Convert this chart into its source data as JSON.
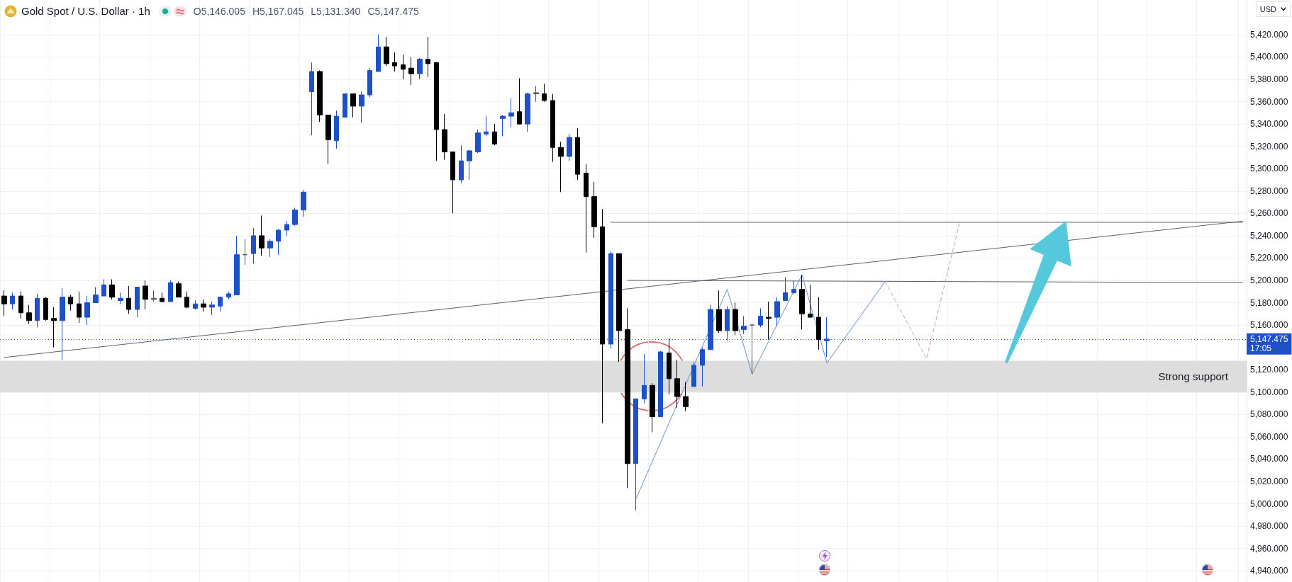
{
  "chart_data": {
    "type": "candlestick",
    "title": "Gold Spot / U.S. Dollar · 1h",
    "ylabel": "USD",
    "annotations": [
      "O5,146.005",
      "H5,167.045",
      "L5,131.340",
      "C5,147.475"
    ],
    "categories": [
      null,
      null,
      null,
      null,
      null,
      null,
      null,
      null,
      null,
      null,
      null,
      null,
      null,
      null,
      null,
      null,
      null,
      null,
      null,
      null,
      null,
      null,
      null,
      null,
      null,
      null,
      null,
      null,
      null,
      null,
      null,
      null,
      null,
      null,
      null,
      null,
      null,
      null,
      null,
      null,
      null,
      null,
      null,
      null,
      null,
      null,
      null,
      null,
      null,
      null,
      null,
      null,
      null,
      null,
      null,
      null,
      null,
      null,
      null,
      null,
      null,
      null,
      null,
      null,
      null,
      null,
      null,
      null,
      null,
      null,
      null,
      null,
      null,
      null,
      null,
      null,
      null,
      null,
      null,
      null,
      null,
      null,
      null,
      null,
      null,
      null,
      null,
      null,
      null,
      null,
      null,
      null,
      null,
      null,
      null,
      null,
      null,
      null,
      null,
      null,
      null,
      null,
      null,
      null,
      null,
      null,
      null,
      null,
      null,
      null,
      null,
      null,
      null,
      null,
      null,
      null,
      null,
      null,
      null,
      null,
      null,
      null,
      null,
      null,
      null,
      null,
      null,
      null,
      null,
      null,
      null,
      null,
      null,
      null,
      null,
      null,
      null,
      null,
      null,
      null,
      null,
      null,
      null,
      null,
      null,
      null,
      null,
      null,
      null,
      null
    ],
    "ohlc": [
      [
        5186,
        5191,
        5168,
        5179
      ],
      [
        5179,
        5189,
        5174,
        5186
      ],
      [
        5186,
        5190,
        5166,
        5171
      ],
      [
        5171,
        5178,
        5161,
        5164
      ],
      [
        5164,
        5188,
        5158,
        5184
      ],
      [
        5184,
        5185,
        5164,
        5165
      ],
      [
        5166,
        5176,
        5140,
        5164
      ],
      [
        5164,
        5193,
        5129,
        5185
      ],
      [
        5185,
        5187,
        5173,
        5179
      ],
      [
        5179,
        5190,
        5162,
        5167
      ],
      [
        5167,
        5186,
        5160,
        5180
      ],
      [
        5180,
        5194,
        5180,
        5187
      ],
      [
        5186,
        5201,
        5186,
        5196
      ],
      [
        5196,
        5201,
        5183,
        5185
      ],
      [
        5182,
        5189,
        5179,
        5184
      ],
      [
        5184,
        5195,
        5170,
        5174
      ],
      [
        5174,
        5194,
        5167,
        5194
      ],
      [
        5195,
        5200,
        5174,
        5183
      ],
      [
        5184,
        5191,
        5181,
        5183
      ],
      [
        5184,
        5189,
        5181,
        5181
      ],
      [
        5181,
        5200,
        5181,
        5198
      ],
      [
        5197,
        5199,
        5185,
        5185
      ],
      [
        5185,
        5190,
        5175,
        5176
      ],
      [
        5175,
        5182,
        5174,
        5179
      ],
      [
        5179,
        5183,
        5172,
        5176
      ],
      [
        5176,
        5181,
        5169,
        5178
      ],
      [
        5177,
        5185,
        5172,
        5185
      ],
      [
        5185,
        5190,
        5183,
        5188
      ],
      [
        5187,
        5240,
        5187,
        5223
      ],
      [
        5223,
        5237,
        5214,
        5223
      ],
      [
        5224,
        5247,
        5215,
        5240
      ],
      [
        5240,
        5258,
        5222,
        5229
      ],
      [
        5229,
        5237,
        5221,
        5235
      ],
      [
        5235,
        5246,
        5223,
        5245
      ],
      [
        5245,
        5253,
        5240,
        5250
      ],
      [
        5250,
        5265,
        5249,
        5263
      ],
      [
        5263,
        5281,
        5257,
        5279
      ],
      [
        5369,
        5395,
        5330,
        5387
      ],
      [
        5387,
        5388,
        5342,
        5348
      ],
      [
        5348,
        5348,
        5304,
        5326
      ],
      [
        5325,
        5352,
        5318,
        5347
      ],
      [
        5346,
        5367,
        5346,
        5367
      ],
      [
        5367,
        5367,
        5346,
        5356
      ],
      [
        5356,
        5369,
        5341,
        5366
      ],
      [
        5366,
        5390,
        5364,
        5388
      ],
      [
        5387,
        5420,
        5387,
        5409
      ],
      [
        5409,
        5418,
        5392,
        5394
      ],
      [
        5395,
        5404,
        5387,
        5392
      ],
      [
        5393,
        5402,
        5380,
        5389
      ],
      [
        5390,
        5400,
        5375,
        5385
      ],
      [
        5385,
        5399,
        5380,
        5398
      ],
      [
        5398,
        5418,
        5382,
        5394
      ],
      [
        5395,
        5395,
        5307,
        5335
      ],
      [
        5335,
        5349,
        5308,
        5315
      ],
      [
        5315,
        5315,
        5260,
        5290
      ],
      [
        5290,
        5321,
        5287,
        5307
      ],
      [
        5307,
        5317,
        5290,
        5316
      ],
      [
        5315,
        5335,
        5314,
        5332
      ],
      [
        5331,
        5347,
        5329,
        5333
      ],
      [
        5333,
        5340,
        5321,
        5322
      ],
      [
        5345,
        5348,
        5329,
        5347
      ],
      [
        5347,
        5363,
        5337,
        5350
      ],
      [
        5351,
        5381,
        5340,
        5340
      ],
      [
        5340,
        5368,
        5333,
        5367
      ],
      [
        5368,
        5374,
        5360,
        5367
      ],
      [
        5367,
        5376,
        5360,
        5361
      ],
      [
        5361,
        5367,
        5306,
        5319
      ],
      [
        5319,
        5324,
        5279,
        5311
      ],
      [
        5311,
        5331,
        5307,
        5328
      ],
      [
        5328,
        5336,
        5290,
        5295
      ],
      [
        5296,
        5304,
        5225,
        5275
      ],
      [
        5275,
        5288,
        5238,
        5248
      ],
      [
        5248,
        5264,
        5072,
        5143
      ],
      [
        5143,
        5226,
        5139,
        5224
      ],
      [
        5224,
        5224,
        5127,
        5155
      ],
      [
        5156,
        5175,
        5014,
        5036
      ],
      [
        5036,
        5094,
        4994,
        5094
      ],
      [
        5094,
        5134,
        5090,
        5106
      ],
      [
        5106,
        5108,
        5064,
        5078
      ],
      [
        5078,
        5137,
        5078,
        5136
      ],
      [
        5135,
        5148,
        5098,
        5112
      ],
      [
        5112,
        5129,
        5086,
        5096
      ],
      [
        5096,
        5109,
        5083,
        5087
      ],
      [
        5105,
        5127,
        5105,
        5124
      ],
      [
        5124,
        5140,
        5105,
        5138
      ],
      [
        5138,
        5178,
        5138,
        5174
      ],
      [
        5174,
        5191,
        5153,
        5155
      ],
      [
        5155,
        5177,
        5146,
        5174
      ],
      [
        5174,
        5180,
        5151,
        5155
      ],
      [
        5156,
        5168,
        5152,
        5159
      ],
      [
        5160,
        5161,
        5116,
        5160
      ],
      [
        5160,
        5175,
        5158,
        5168
      ],
      [
        5167,
        5181,
        5147,
        5166
      ],
      [
        5167,
        5185,
        5159,
        5181
      ],
      [
        5182,
        5203,
        5182,
        5189
      ],
      [
        5189,
        5200,
        5188,
        5192
      ],
      [
        5192,
        5205,
        5156,
        5170
      ],
      [
        5170,
        5196,
        5167,
        5167
      ],
      [
        5167,
        5185,
        5138,
        5147
      ],
      [
        5146.005,
        5167.045,
        5131.34,
        5147.475
      ],
      null,
      null,
      null,
      null,
      null,
      null,
      null,
      null,
      null,
      null,
      null,
      null,
      null,
      null,
      null,
      null,
      null,
      null,
      null,
      null,
      null,
      null,
      null,
      null,
      null,
      null,
      null,
      null,
      null,
      null,
      null,
      null,
      null,
      null,
      null,
      null,
      null,
      null,
      null,
      null,
      null,
      null,
      null,
      null,
      null,
      null,
      null,
      null,
      null,
      null
    ],
    "colors": [
      "#000000",
      "#1e50c8",
      "#000000",
      "#000000",
      "#1e50c8",
      "#000000",
      "#000000",
      "#1e50c8",
      "#000000",
      "#000000",
      "#1e50c8",
      "#1e50c8",
      "#1e50c8",
      "#000000",
      "#1e50c8",
      "#000000",
      "#1e50c8",
      "#000000",
      "#555555",
      "#000000",
      "#1e50c8",
      "#000000",
      "#000000",
      "#1e50c8",
      "#000000",
      "#1e50c8",
      "#1e50c8",
      "#1e50c8",
      "#1e50c8",
      "#555555",
      "#1e50c8",
      "#000000",
      "#1e50c8",
      "#1e50c8",
      "#1e50c8",
      "#1e50c8",
      "#1e50c8",
      "#1e50c8",
      "#000000",
      "#000000",
      "#1e50c8",
      "#1e50c8",
      "#000000",
      "#1e50c8",
      "#1e50c8",
      "#1e50c8",
      "#000000",
      "#000000",
      "#000000",
      "#000000",
      "#1e50c8",
      "#000000",
      "#000000",
      "#000000",
      "#000000",
      "#1e50c8",
      "#1e50c8",
      "#1e50c8",
      "#1e50c8",
      "#000000",
      "#1e50c8",
      "#1e50c8",
      "#000000",
      "#1e50c8",
      "#555555",
      "#000000",
      "#000000",
      "#000000",
      "#1e50c8",
      "#000000",
      "#000000",
      "#000000",
      "#000000",
      "#1e50c8",
      "#000000",
      "#000000",
      "#1e50c8",
      "#1e50c8",
      "#000000",
      "#1e50c8",
      "#000000",
      "#000000",
      "#000000",
      "#1e50c8",
      "#1e50c8",
      "#1e50c8",
      "#000000",
      "#1e50c8",
      "#000000",
      "#1e50c8",
      "#555555",
      "#1e50c8",
      "#000000",
      "#1e50c8",
      "#1e50c8",
      "#1e50c8",
      "#000000",
      "#000000",
      "#000000",
      "#1e50c8",
      null,
      null,
      null,
      null,
      null,
      null,
      null,
      null,
      null,
      null,
      null,
      null,
      null,
      null,
      null,
      null,
      null,
      null,
      null,
      null,
      null,
      null,
      null,
      null,
      null,
      null,
      null,
      null,
      null,
      null,
      null,
      null,
      null,
      null,
      null,
      null,
      null,
      null,
      null,
      null,
      null,
      null,
      null,
      null,
      null,
      null,
      null,
      null,
      null,
      null
    ],
    "series": [
      {
        "type": "line",
        "color": "#5d606b",
        "values": [
          5131,
          null,
          null,
          null,
          null,
          null,
          null,
          null,
          null,
          null,
          null,
          null,
          null,
          null,
          null,
          null,
          null,
          null,
          null,
          null,
          null,
          null,
          null,
          null,
          null,
          null,
          null,
          null,
          null,
          null,
          null,
          null,
          null,
          null,
          null,
          null,
          null,
          null,
          null,
          null,
          null,
          null,
          null,
          null,
          null,
          null,
          null,
          null,
          null,
          null,
          null,
          null,
          null,
          null,
          null,
          null,
          null,
          null,
          null,
          null,
          null,
          null,
          null,
          null,
          null,
          null,
          null,
          null,
          null,
          null,
          null,
          null,
          null,
          null,
          null,
          null,
          null,
          null,
          null,
          null,
          null,
          null,
          null,
          null,
          null,
          null,
          null,
          null,
          null,
          null,
          null,
          null,
          null,
          null,
          null,
          null,
          null,
          null,
          null,
          null,
          null,
          null,
          null,
          null,
          null,
          null,
          null,
          null,
          null,
          null,
          null,
          null,
          null,
          null,
          null,
          null,
          null,
          null,
          null,
          null,
          null,
          null,
          null,
          null,
          null,
          null,
          null,
          null,
          null,
          null,
          null,
          null,
          null,
          null,
          null,
          null,
          null,
          null,
          null,
          null,
          null,
          null,
          null,
          null,
          null,
          null,
          null,
          null,
          null,
          5253
        ]
      },
      {
        "type": "line",
        "color": "#5d606b",
        "values": [
          null,
          null,
          null,
          null,
          null,
          null,
          null,
          null,
          null,
          null,
          null,
          null,
          null,
          null,
          null,
          null,
          null,
          null,
          null,
          null,
          null,
          null,
          null,
          null,
          null,
          null,
          null,
          null,
          null,
          null,
          null,
          null,
          null,
          null,
          null,
          null,
          null,
          null,
          null,
          null,
          null,
          null,
          null,
          null,
          null,
          null,
          null,
          null,
          null,
          null,
          null,
          null,
          null,
          null,
          null,
          null,
          null,
          null,
          null,
          null,
          null,
          null,
          null,
          null,
          null,
          null,
          null,
          null,
          null,
          null,
          null,
          null,
          null,
          5252,
          null,
          null,
          null,
          null,
          null,
          null,
          null,
          null,
          null,
          null,
          null,
          null,
          null,
          null,
          null,
          null,
          null,
          null,
          null,
          null,
          null,
          null,
          null,
          null,
          null,
          null,
          null,
          null,
          null,
          null,
          null,
          null,
          null,
          null,
          null,
          null,
          null,
          null,
          null,
          null,
          null,
          null,
          null,
          null,
          null,
          null,
          null,
          null,
          null,
          null,
          null,
          null,
          null,
          null,
          null,
          null,
          null,
          null,
          null,
          null,
          null,
          null,
          null,
          null,
          null,
          null,
          null,
          null,
          null,
          null,
          null,
          null,
          null,
          null,
          null,
          5252
        ]
      },
      {
        "type": "line",
        "color": "#5d606b",
        "values": [
          null,
          null,
          null,
          null,
          null,
          null,
          null,
          null,
          null,
          null,
          null,
          null,
          null,
          null,
          null,
          null,
          null,
          null,
          null,
          null,
          null,
          null,
          null,
          null,
          null,
          null,
          null,
          null,
          null,
          null,
          null,
          null,
          null,
          null,
          null,
          null,
          null,
          null,
          null,
          null,
          null,
          null,
          null,
          null,
          null,
          null,
          null,
          null,
          null,
          null,
          null,
          null,
          null,
          null,
          null,
          null,
          null,
          null,
          null,
          null,
          null,
          null,
          null,
          null,
          null,
          null,
          null,
          null,
          null,
          null,
          null,
          null,
          null,
          null,
          null,
          5200,
          null,
          null,
          null,
          null,
          null,
          null,
          null,
          null,
          null,
          null,
          null,
          null,
          null,
          null,
          null,
          null,
          null,
          null,
          null,
          null,
          null,
          null,
          null,
          null,
          null,
          null,
          null,
          null,
          null,
          null,
          null,
          null,
          null,
          null,
          null,
          null,
          null,
          null,
          null,
          null,
          null,
          null,
          null,
          null,
          null,
          null,
          null,
          null,
          null,
          null,
          null,
          null,
          null,
          null,
          null,
          null,
          null,
          null,
          null,
          null,
          null,
          null,
          null,
          null,
          null,
          null,
          null,
          null,
          null,
          null,
          null,
          null,
          null,
          5198
        ]
      },
      {
        "type": "line",
        "color": "#6b8fcc",
        "values": [
          null,
          null,
          null,
          null,
          null,
          null,
          null,
          null,
          null,
          null,
          null,
          null,
          null,
          null,
          null,
          null,
          null,
          null,
          null,
          null,
          null,
          null,
          null,
          null,
          null,
          null,
          null,
          null,
          null,
          null,
          null,
          null,
          null,
          null,
          null,
          null,
          null,
          null,
          null,
          null,
          null,
          null,
          null,
          null,
          null,
          null,
          null,
          null,
          null,
          null,
          null,
          null,
          null,
          null,
          null,
          null,
          null,
          null,
          null,
          null,
          null,
          null,
          null,
          null,
          null,
          null,
          null,
          null,
          null,
          null,
          null,
          null,
          null,
          null,
          null,
          null,
          5004,
          null,
          null,
          null,
          null,
          null,
          null,
          null,
          null,
          null,
          null,
          5192,
          null,
          null,
          5116,
          null,
          null,
          null,
          null,
          null,
          5205,
          null,
          null,
          5126,
          null,
          null,
          null,
          null,
          null,
          null,
          5199,
          null,
          null,
          null,
          null,
          null,
          null,
          null,
          null,
          null,
          null,
          null,
          null,
          null,
          null,
          null,
          null,
          null,
          null,
          null,
          null,
          null,
          null,
          null,
          null,
          null,
          null,
          null,
          null,
          null,
          null,
          null,
          null,
          null,
          null,
          null,
          null,
          null,
          null,
          null,
          null,
          null,
          null,
          null
        ]
      },
      {
        "type": "line",
        "color": "#d4a0a0",
        "line_style": "dashed",
        "values": [
          null,
          null,
          null,
          null,
          null,
          null,
          null,
          null,
          null,
          null,
          null,
          null,
          null,
          null,
          null,
          null,
          null,
          null,
          null,
          null,
          null,
          null,
          null,
          null,
          null,
          null,
          null,
          null,
          null,
          null,
          null,
          null,
          null,
          null,
          null,
          null,
          null,
          null,
          null,
          null,
          null,
          null,
          null,
          null,
          null,
          null,
          null,
          null,
          null,
          null,
          null,
          null,
          null,
          null,
          null,
          null,
          null,
          null,
          null,
          null,
          null,
          null,
          null,
          null,
          null,
          null,
          null,
          null,
          null,
          null,
          null,
          null,
          null,
          null,
          null,
          null,
          null,
          null,
          null,
          null,
          null,
          null,
          null,
          null,
          null,
          null,
          null,
          null,
          null,
          null,
          null,
          null,
          null,
          null,
          null,
          null,
          null,
          null,
          null,
          null,
          null,
          null,
          null,
          null,
          null,
          null,
          5199,
          null,
          null,
          null,
          null,
          5130,
          null,
          null,
          null,
          5253,
          null,
          null,
          null,
          null,
          null,
          null,
          null,
          null,
          null,
          null,
          null,
          null,
          null,
          null,
          null,
          null,
          null,
          null,
          null,
          null,
          null,
          null,
          null,
          null,
          null,
          null,
          null,
          null,
          null,
          null,
          null,
          null,
          null,
          null
        ]
      }
    ],
    "ylim": [
      4930,
      5451
    ],
    "yticks": [
      {
        "value": 4940,
        "label": "4,940.000"
      },
      {
        "value": 4960,
        "label": "4,960.000"
      },
      {
        "value": 4980,
        "label": "4,980.000"
      },
      {
        "value": 5000,
        "label": "5,000.000"
      },
      {
        "value": 5020,
        "label": "5,020.000"
      },
      {
        "value": 5040,
        "label": "5,040.000"
      },
      {
        "value": 5060,
        "label": "5,060.000"
      },
      {
        "value": 5080,
        "label": "5,080.000"
      },
      {
        "value": 5100,
        "label": "5,100.000"
      },
      {
        "value": 5120,
        "label": "5,120.000"
      },
      {
        "value": 5160,
        "label": "5,160.000"
      },
      {
        "value": 5180,
        "label": "5,180.000"
      },
      {
        "value": 5200,
        "label": "5,200.000"
      },
      {
        "value": 5220,
        "label": "5,220.000"
      },
      {
        "value": 5240,
        "label": "5,240.000"
      },
      {
        "value": 5260,
        "label": "5,260.000"
      },
      {
        "value": 5280,
        "label": "5,280.000"
      },
      {
        "value": 5300,
        "label": "5,300.000"
      },
      {
        "value": 5320,
        "label": "5,320.000"
      },
      {
        "value": 5340,
        "label": "5,340.000"
      },
      {
        "value": 5360,
        "label": "5,360.000"
      },
      {
        "value": 5380,
        "label": "5,380.000"
      },
      {
        "value": 5400,
        "label": "5,400.000"
      },
      {
        "value": 5420,
        "label": "5,420.000"
      }
    ],
    "ref_lines": [
      {
        "axis": "y",
        "value": 5147.475,
        "label": "5,147.475\n17:05",
        "color": "#1e50c8",
        "line_style": "dotted"
      }
    ],
    "bands": [
      {
        "axis": "y",
        "from": 5100,
        "to": 5128,
        "label": "Strong support",
        "color": "#dddddd"
      }
    ],
    "grid": true,
    "tick_labels": "y"
  }
}
